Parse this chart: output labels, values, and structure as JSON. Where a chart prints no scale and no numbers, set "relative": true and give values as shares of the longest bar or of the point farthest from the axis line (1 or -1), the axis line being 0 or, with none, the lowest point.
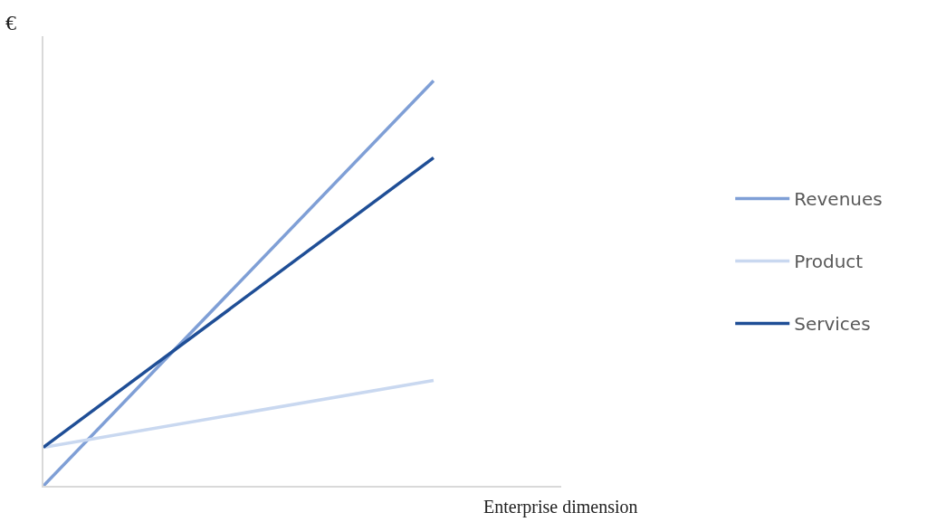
{
  "chart_data": {
    "type": "line",
    "relative": true,
    "ylabel": "€",
    "xlabel": "Enterprise dimension",
    "categories": [
      null,
      null
    ],
    "legend": "right",
    "series": [
      {
        "name": "Revenues",
        "color": "#7f9fd6",
        "values": [
          0,
          1
        ]
      },
      {
        "name": "Product",
        "color": "#c9d8f0",
        "values": [
          0.095,
          0.26
        ]
      },
      {
        "name": "Services",
        "color": "#1f4e96",
        "values": [
          0.095,
          0.81
        ]
      }
    ]
  }
}
